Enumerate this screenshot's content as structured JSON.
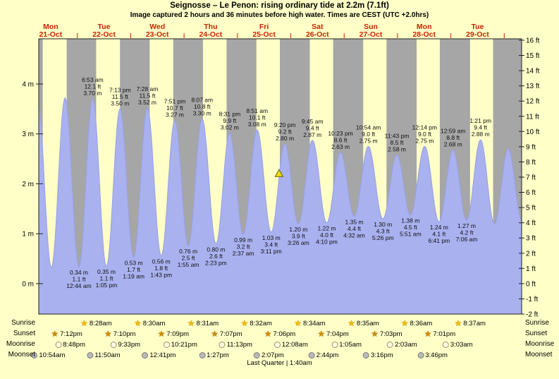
{
  "title": "Seignosse – Le Penon: rising  ordinary tide at 2.2m (7.1ft)",
  "subtitle": "Image captured 2 hours and 36 minutes before high water. Times are CEST (UTC +2.0hrs)",
  "colors": {
    "background": "#ffffc8",
    "night_band": "#a6a6a6",
    "tide_fill": "#a9b1ef",
    "tide_stroke": "#98a0e6",
    "day_label": "#cc2200",
    "marker": "#f0dc00"
  },
  "chart_data": {
    "type": "area",
    "title": "Seignosse – Le Penon tide height",
    "time_origin": "Mon 21-Oct 00:00",
    "t_start_hour": 6.6,
    "t_end_hour": 223.8,
    "days": [
      {
        "name": "Mon",
        "date": "21-Oct"
      },
      {
        "name": "Tue",
        "date": "22-Oct"
      },
      {
        "name": "Wed",
        "date": "23-Oct"
      },
      {
        "name": "Thu",
        "date": "24-Oct"
      },
      {
        "name": "Fri",
        "date": "25-Oct"
      },
      {
        "name": "Sat",
        "date": "26-Oct"
      },
      {
        "name": "Sun",
        "date": "27-Oct"
      },
      {
        "name": "Mon",
        "date": "28-Oct"
      },
      {
        "name": "Tue",
        "date": "29-Oct"
      }
    ],
    "y_axis": {
      "left_unit": "m",
      "left_ticks": [
        4,
        3,
        2,
        1,
        0
      ],
      "right_unit": "ft",
      "right_ticks": [
        16,
        15,
        14,
        13,
        12,
        11,
        10,
        9,
        8,
        7,
        6,
        5,
        4,
        3,
        2,
        1,
        0,
        -1,
        -2
      ]
    },
    "marker": {
      "t": 114.73,
      "m": 2.2
    },
    "tide_events": [
      {
        "t": 6.08,
        "m": 3.7,
        "kind": "high"
      },
      {
        "t": 12.33,
        "m": 0.33,
        "kind": "low"
      },
      {
        "t": 18.48,
        "m": 3.72,
        "kind": "high"
      },
      {
        "t": 24.73,
        "m": 0.34,
        "kind": "low",
        "lines": [
          "0.34 m",
          "1.1 ft",
          "12:44 am"
        ]
      },
      {
        "t": 30.88,
        "m": 3.7,
        "kind": "high",
        "lines": [
          "6:53 am",
          "12.1 ft",
          "3.70 m"
        ]
      },
      {
        "t": 37.08,
        "m": 0.35,
        "kind": "low",
        "lines": [
          "0.35 m",
          "1.1 ft",
          "1:05 pm"
        ]
      },
      {
        "t": 43.22,
        "m": 3.5,
        "kind": "high",
        "lines": [
          "7:13 pm",
          "11.5 ft",
          "3.50 m"
        ]
      },
      {
        "t": 49.32,
        "m": 0.53,
        "kind": "low",
        "lines": [
          "0.53 m",
          "1.7 ft",
          "1:19 am"
        ]
      },
      {
        "t": 55.47,
        "m": 3.52,
        "kind": "high",
        "lines": [
          "7:28 am",
          "11.5 ft",
          "3.52 m"
        ]
      },
      {
        "t": 61.72,
        "m": 0.56,
        "kind": "low",
        "lines": [
          "0.56 m",
          "1.8 ft",
          "1:43 pm"
        ]
      },
      {
        "t": 67.85,
        "m": 3.27,
        "kind": "high",
        "lines": [
          "7:51 pm",
          "10.7 ft",
          "3.27 m"
        ]
      },
      {
        "t": 73.92,
        "m": 0.76,
        "kind": "low",
        "lines": [
          "0.76 m",
          "2.5 ft",
          "1:55 am"
        ]
      },
      {
        "t": 80.12,
        "m": 3.3,
        "kind": "high",
        "lines": [
          "8:07 am",
          "10.8 ft",
          "3.30 m"
        ]
      },
      {
        "t": 86.38,
        "m": 0.8,
        "kind": "low",
        "lines": [
          "0.80 m",
          "2.6 ft",
          "2:23 pm"
        ]
      },
      {
        "t": 92.52,
        "m": 3.02,
        "kind": "high",
        "lines": [
          "8:31 pm",
          "9.9 ft",
          "3.02 m"
        ]
      },
      {
        "t": 98.62,
        "m": 0.99,
        "kind": "low",
        "lines": [
          "0.99 m",
          "3.2 ft",
          "2:37 am"
        ]
      },
      {
        "t": 104.85,
        "m": 3.08,
        "kind": "high",
        "lines": [
          "8:51 am",
          "10.1 ft",
          "3.08 m"
        ]
      },
      {
        "t": 111.18,
        "m": 1.03,
        "kind": "low",
        "lines": [
          "1.03 m",
          "3.4 ft",
          "3:11 pm"
        ]
      },
      {
        "t": 117.33,
        "m": 2.8,
        "kind": "high",
        "lines": [
          "9:20 pm",
          "9.2 ft",
          "2.80 m"
        ]
      },
      {
        "t": 123.43,
        "m": 1.2,
        "kind": "low",
        "lines": [
          "1.20 m",
          "3.9 ft",
          "3:26 am"
        ]
      },
      {
        "t": 129.75,
        "m": 2.87,
        "kind": "high",
        "lines": [
          "9:45 am",
          "9.4 ft",
          "2.87 m"
        ]
      },
      {
        "t": 136.17,
        "m": 1.22,
        "kind": "low",
        "lines": [
          "1.22 m",
          "4.0 ft",
          "4:10 pm"
        ]
      },
      {
        "t": 142.38,
        "m": 2.63,
        "kind": "high",
        "lines": [
          "10:23 pm",
          "8.6 ft",
          "2.63 m"
        ]
      },
      {
        "t": 148.53,
        "m": 1.35,
        "kind": "low",
        "lines": [
          "1.35 m",
          "4.4 ft",
          "4:32 am"
        ]
      },
      {
        "t": 154.9,
        "m": 2.75,
        "kind": "high",
        "lines": [
          "10:54 am",
          "9.0 ft",
          "2.75 m"
        ]
      },
      {
        "t": 161.43,
        "m": 1.3,
        "kind": "low",
        "lines": [
          "1.30 m",
          "4.3 ft",
          "5:26 pm"
        ]
      },
      {
        "t": 167.72,
        "m": 2.58,
        "kind": "high",
        "lines": [
          "11:43 pm",
          "8.5 ft",
          "2.58 m"
        ]
      },
      {
        "t": 173.85,
        "m": 1.38,
        "kind": "low",
        "lines": [
          "1.38 m",
          "4.5 ft",
          "5:51 am"
        ]
      },
      {
        "t": 180.23,
        "m": 2.75,
        "kind": "high",
        "lines": [
          "12:14 pm",
          "9.0 ft",
          "2.75 m"
        ]
      },
      {
        "t": 186.68,
        "m": 1.24,
        "kind": "low",
        "lines": [
          "1.24 m",
          "4.1 ft",
          "6:41 pm"
        ]
      },
      {
        "t": 192.98,
        "m": 2.68,
        "kind": "high",
        "lines": [
          "12:59 am",
          "8.8 ft",
          "2.68 m"
        ]
      },
      {
        "t": 199.1,
        "m": 1.27,
        "kind": "low",
        "lines": [
          "1.27 m",
          "4.2 ft",
          "7:06 am"
        ]
      },
      {
        "t": 205.35,
        "m": 2.88,
        "kind": "high",
        "lines": [
          "1:21 pm",
          "9.4 ft",
          "2.88 m"
        ]
      },
      {
        "t": 211.6,
        "m": 1.2,
        "kind": "low"
      },
      {
        "t": 217.8,
        "m": 2.7,
        "kind": "high"
      },
      {
        "t": 224.0,
        "m": 1.25,
        "kind": "low"
      }
    ]
  },
  "astro_rows": [
    {
      "key": "sunrise",
      "label": "Sunrise",
      "icon": "sunrise-star-icon",
      "events": [
        {
          "day": 1,
          "time": "8:28am"
        },
        {
          "day": 2,
          "time": "8:30am"
        },
        {
          "day": 3,
          "time": "8:31am"
        },
        {
          "day": 4,
          "time": "8:32am"
        },
        {
          "day": 5,
          "time": "8:34am"
        },
        {
          "day": 6,
          "time": "8:35am"
        },
        {
          "day": 7,
          "time": "8:36am"
        },
        {
          "day": 8,
          "time": "8:37am"
        }
      ]
    },
    {
      "key": "sunset",
      "label": "Sunset",
      "icon": "sunset-star-icon",
      "events": [
        {
          "day": 0,
          "time": "7:12pm"
        },
        {
          "day": 1,
          "time": "7:10pm"
        },
        {
          "day": 2,
          "time": "7:09pm"
        },
        {
          "day": 3,
          "time": "7:07pm"
        },
        {
          "day": 4,
          "time": "7:06pm"
        },
        {
          "day": 5,
          "time": "7:04pm"
        },
        {
          "day": 6,
          "time": "7:03pm"
        },
        {
          "day": 7,
          "time": "7:01pm"
        }
      ]
    },
    {
      "key": "moonrise",
      "label": "Moonrise",
      "icon": "moonrise-circle-icon",
      "events": [
        {
          "day": 0,
          "time": "8:48pm"
        },
        {
          "day": 1,
          "time": "9:33pm"
        },
        {
          "day": 2,
          "time": "10:21pm"
        },
        {
          "day": 3,
          "time": "11:13pm"
        },
        {
          "day": 5,
          "time": "12:08am"
        },
        {
          "day": 6,
          "time": "1:05am"
        },
        {
          "day": 7,
          "time": "2:03am"
        },
        {
          "day": 8,
          "time": "3:03am"
        }
      ]
    },
    {
      "key": "moonset",
      "label": "Moonset",
      "icon": "moonset-circle-icon",
      "events": [
        {
          "day": 0,
          "time": "10:54am"
        },
        {
          "day": 1,
          "time": "11:50am"
        },
        {
          "day": 2,
          "time": "12:41pm"
        },
        {
          "day": 3,
          "time": "1:27pm"
        },
        {
          "day": 4,
          "time": "2:07pm"
        },
        {
          "day": 5,
          "time": "2:44pm"
        },
        {
          "day": 6,
          "time": "3:16pm"
        },
        {
          "day": 7,
          "time": "3:46pm"
        }
      ]
    }
  ],
  "moon_phase": "Last Quarter | 1:40am"
}
